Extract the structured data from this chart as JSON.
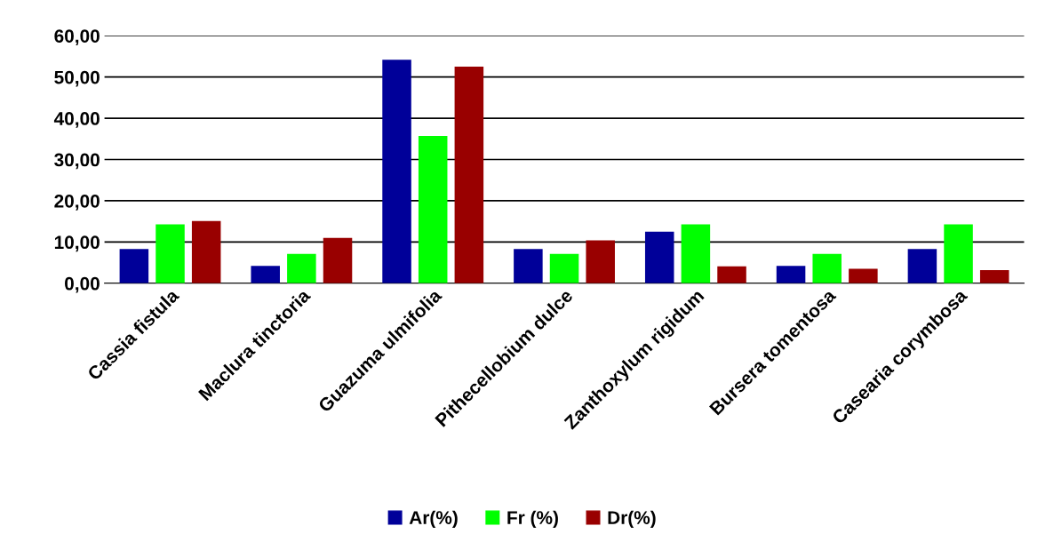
{
  "chart_data": {
    "type": "bar",
    "categories": [
      "Cassia fistula",
      "Maclura tinctoria",
      "Guazuma ulmifolia",
      "Pithecellobium dulce",
      "Zanthoxylum rigidum",
      "Bursera tomentosa",
      "Casearia corymbosa"
    ],
    "series": [
      {
        "name": "Ar(%)",
        "color": "#000099",
        "values": [
          8.3,
          4.2,
          54.2,
          8.3,
          12.5,
          4.2,
          8.3
        ]
      },
      {
        "name": "Fr (%)",
        "color": "#00ff00",
        "values": [
          14.3,
          7.1,
          35.7,
          7.1,
          14.3,
          7.1,
          14.3
        ]
      },
      {
        "name": "Dr(%)",
        "color": "#990000",
        "values": [
          15.1,
          11.0,
          52.5,
          10.4,
          4.1,
          3.5,
          3.2
        ]
      }
    ],
    "ylim": [
      0,
      60
    ],
    "yticks": [
      {
        "value": 0,
        "label": "0,00"
      },
      {
        "value": 10,
        "label": "10,00"
      },
      {
        "value": 20,
        "label": "20,00"
      },
      {
        "value": 30,
        "label": "30,00"
      },
      {
        "value": 40,
        "label": "40,00"
      },
      {
        "value": 50,
        "label": "50,00"
      },
      {
        "value": 60,
        "label": "60,00"
      }
    ],
    "grid": "y",
    "legend": "bottom"
  }
}
